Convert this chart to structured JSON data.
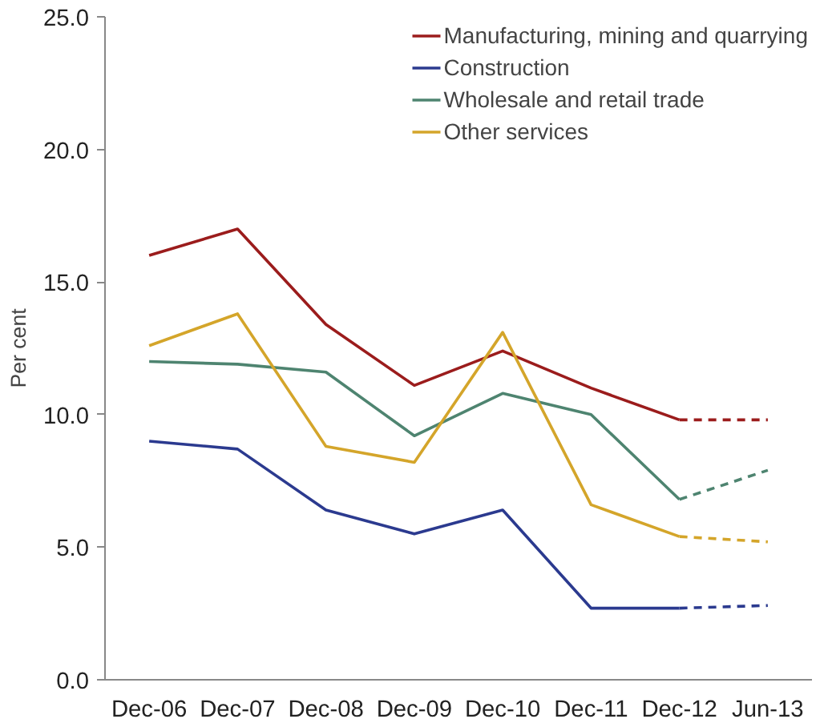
{
  "chart_data": {
    "type": "line",
    "ylabel": "Per cent",
    "categories": [
      "Dec-06",
      "Dec-07",
      "Dec-08",
      "Dec-09",
      "Dec-10",
      "Dec-11",
      "Dec-12",
      "Jun-13"
    ],
    "ylim": [
      0,
      25
    ],
    "yticks": [
      {
        "value": 0,
        "label": "0.0"
      },
      {
        "value": 5,
        "label": "5.0"
      },
      {
        "value": 10,
        "label": "10.0"
      },
      {
        "value": 15,
        "label": "15.0"
      },
      {
        "value": 20,
        "label": "20.0"
      },
      {
        "value": 25,
        "label": "25.0"
      }
    ],
    "grid": false,
    "legend": "top right",
    "marker": "none",
    "series": [
      {
        "name": "Manufacturing, mining and quarrying",
        "color": "#9b1c1c",
        "line_style": "solid",
        "values": [
          16.0,
          17.0,
          13.4,
          11.1,
          12.4,
          11.0,
          9.8,
          null
        ]
      },
      {
        "name": "Construction",
        "color": "#2b3a8f",
        "line_style": "solid",
        "values": [
          9.0,
          8.7,
          6.4,
          5.5,
          6.4,
          2.7,
          2.7,
          null
        ]
      },
      {
        "name": "Wholesale and retail trade",
        "color": "#4e8470",
        "line_style": "solid",
        "values": [
          12.0,
          11.9,
          11.6,
          9.2,
          10.8,
          10.0,
          6.8,
          null
        ]
      },
      {
        "name": "Other services",
        "color": "#d4a52a",
        "line_style": "solid",
        "values": [
          12.6,
          13.8,
          8.8,
          8.2,
          13.1,
          6.6,
          5.4,
          null
        ]
      },
      {
        "color": "#9b1c1c",
        "line_style": "dashed",
        "values": [
          null,
          null,
          null,
          null,
          null,
          null,
          9.8,
          9.8
        ]
      },
      {
        "color": "#2b3a8f",
        "line_style": "dashed",
        "values": [
          null,
          null,
          null,
          null,
          null,
          null,
          2.7,
          2.8
        ]
      },
      {
        "color": "#4e8470",
        "line_style": "dashed",
        "values": [
          null,
          null,
          null,
          null,
          null,
          null,
          6.8,
          7.9
        ]
      },
      {
        "color": "#d4a52a",
        "line_style": "dashed",
        "values": [
          null,
          null,
          null,
          null,
          null,
          null,
          5.4,
          5.2
        ]
      }
    ]
  }
}
